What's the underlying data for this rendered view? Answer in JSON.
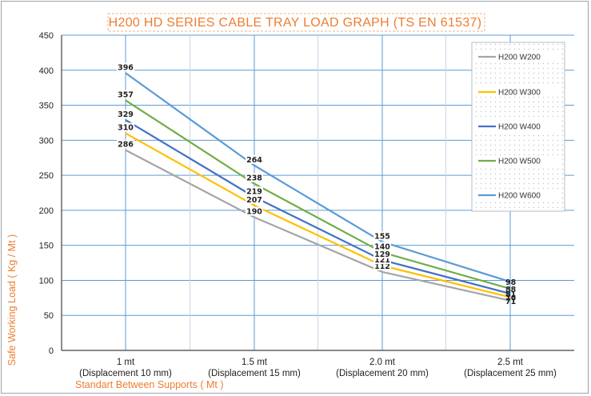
{
  "chart_data": {
    "type": "line",
    "title": "H200 HD SERIES CABLE TRAY LOAD GRAPH (TS EN 61537)",
    "xlabel": "Standart Between Supports ( Mt )",
    "ylabel": "Safe Working Load ( Kg / Mt )",
    "categories": [
      "1 mt",
      "1.5 mt",
      "2.0 mt",
      "2.5 mt"
    ],
    "category_sublabels": [
      "(Displacement 10 mm)",
      "(Displacement 15 mm)",
      "(Displacement 20 mm)",
      "(Displacement 25 mm)"
    ],
    "ylim": [
      0,
      450
    ],
    "yticks": [
      0,
      50,
      100,
      150,
      200,
      250,
      300,
      350,
      400,
      450
    ],
    "grid": true,
    "legend_position": "top-right",
    "series": [
      {
        "name": "H200 W200",
        "color": "#a5a5a5",
        "values": [
          286,
          190,
          112,
          71
        ]
      },
      {
        "name": "H200 W300",
        "color": "#ffc000",
        "values": [
          310,
          207,
          121,
          76
        ]
      },
      {
        "name": "H200 W400",
        "color": "#4472c4",
        "values": [
          329,
          219,
          129,
          81
        ]
      },
      {
        "name": "H200 W500",
        "color": "#70ad47",
        "values": [
          357,
          238,
          140,
          88
        ]
      },
      {
        "name": "H200 W600",
        "color": "#5b9bd5",
        "values": [
          396,
          264,
          155,
          98
        ]
      }
    ]
  }
}
